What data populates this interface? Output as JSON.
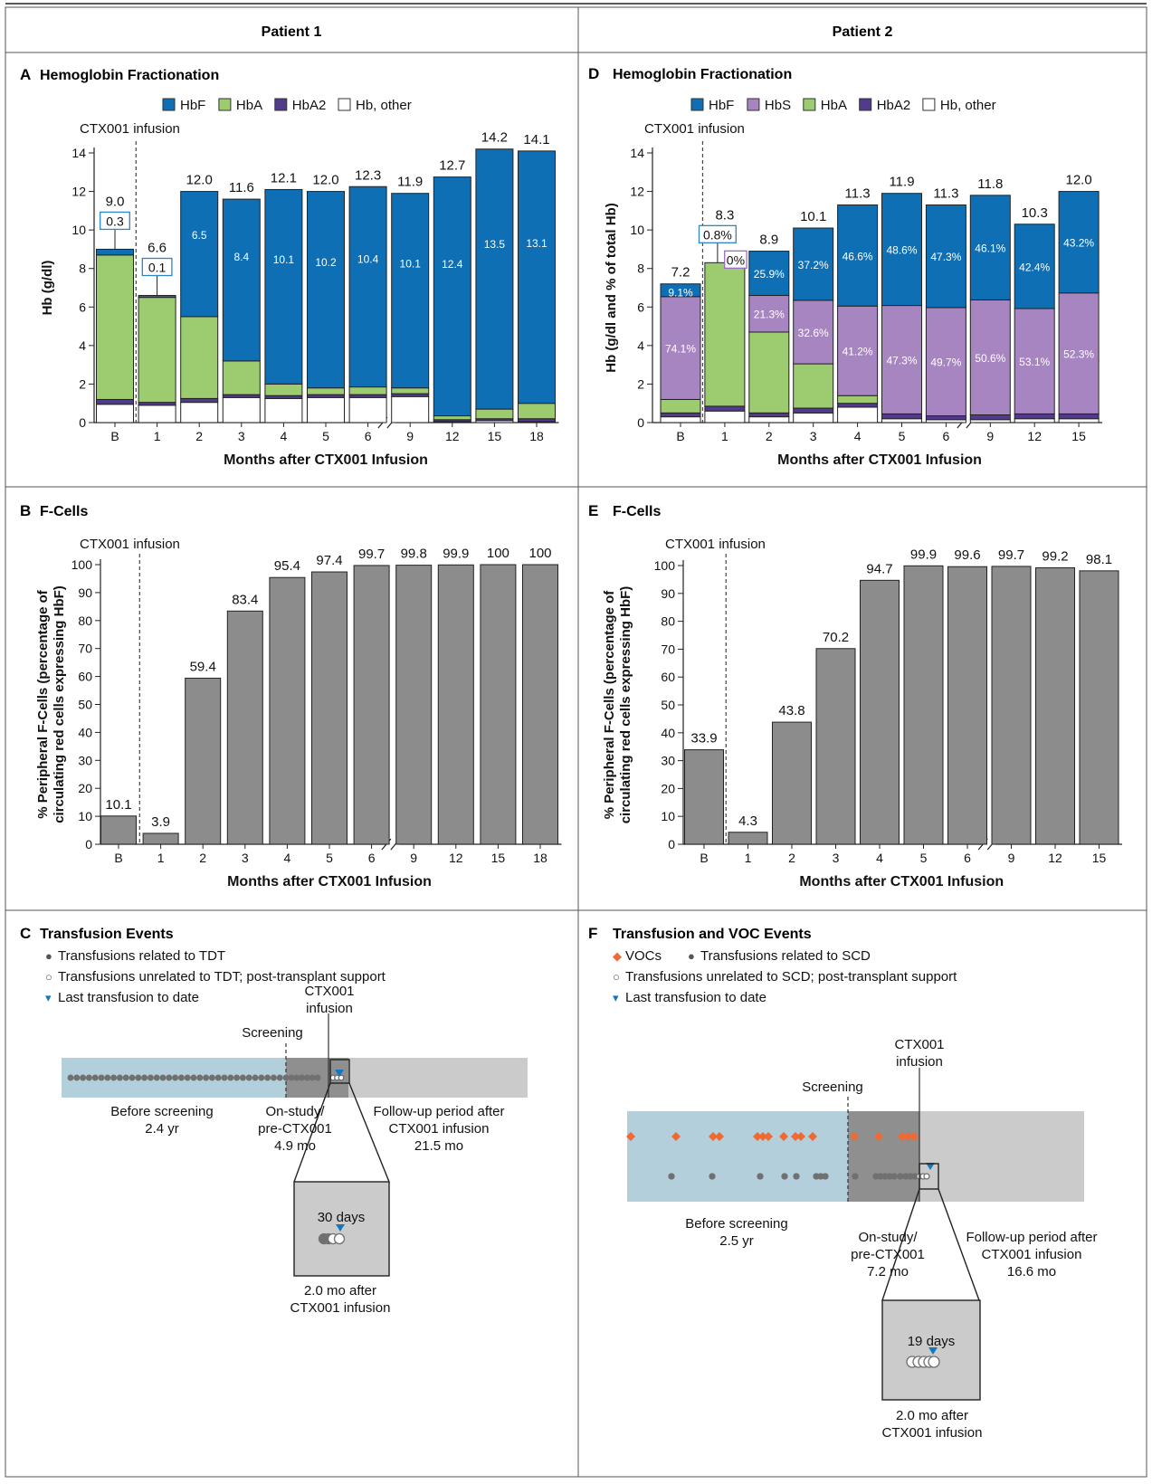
{
  "columns": [
    "Patient 1",
    "Patient 2"
  ],
  "colors": {
    "HbF": "#0e6fb5",
    "HbA": "#9ccc6f",
    "HbA2": "#523b8d",
    "HbS": "#a685c0",
    "other": "#ffffff",
    "fcell": "#8c8c8c",
    "voc": "#ef6a32",
    "dot": "#707070",
    "before_band": "#b3cfdc",
    "onstudy_band": "#8f8f8f",
    "follow_band": "#cbcbcb",
    "arrow": "#1478c0",
    "box_blue": "#2d87c6",
    "box_purple": "#9a6ec0"
  },
  "panels": {
    "A": {
      "letter": "A",
      "title": "Hemoglobin Fractionation",
      "marker_label": "CTX001 infusion",
      "ylabel": "Hb (g/dl)",
      "xlabel": "Months after CTX001 Infusion",
      "legend": [
        {
          "key": "HbF",
          "label": "HbF"
        },
        {
          "key": "HbA",
          "label": "HbA"
        },
        {
          "key": "HbA2",
          "label": "HbA2"
        },
        {
          "key": "other",
          "label": "Hb, other"
        }
      ]
    },
    "B": {
      "letter": "B",
      "title": "F-Cells",
      "marker_label": "CTX001 infusion",
      "ylabel_line1": "% Peripheral F-Cells (percentage of",
      "ylabel_line2": "circulating red cells expressing HbF)",
      "xlabel": "Months after CTX001 Infusion"
    },
    "C": {
      "letter": "C",
      "title": "Transfusion Events",
      "legend": [
        {
          "symbol": "●",
          "label": "Transfusions related to TDT"
        },
        {
          "symbol": "○",
          "label": "Transfusions unrelated to TDT; post-transplant support"
        },
        {
          "symbol": "▾",
          "label": "Last transfusion to date"
        }
      ],
      "screening_label": "Screening",
      "infusion_label": [
        "CTX001",
        "infusion"
      ],
      "before_label": [
        "Before screening",
        "2.4 yr"
      ],
      "onstudy_label": [
        "On-study/",
        "pre-CTX001",
        "4.9 mo"
      ],
      "followup_label": [
        "Follow-up period after",
        "CTX001 infusion",
        "21.5 mo"
      ],
      "zoom_days": "30 days",
      "zoom_caption": [
        "2.0 mo after",
        "CTX001 infusion"
      ]
    },
    "D": {
      "letter": "D",
      "title": "Hemoglobin Fractionation",
      "marker_label": "CTX001 infusion",
      "ylabel": "Hb (g/dl and % of total Hb)",
      "xlabel": "Months after CTX001 Infusion",
      "legend": [
        {
          "key": "HbF",
          "label": "HbF"
        },
        {
          "key": "HbS",
          "label": "HbS"
        },
        {
          "key": "HbA",
          "label": "HbA"
        },
        {
          "key": "HbA2",
          "label": "HbA2"
        },
        {
          "key": "other",
          "label": "Hb, other"
        }
      ]
    },
    "E": {
      "letter": "E",
      "title": "F-Cells",
      "marker_label": "CTX001 infusion",
      "ylabel_line1": "% Peripheral F-Cells (percentage of",
      "ylabel_line2": "circulating red cells expressing HbF)",
      "xlabel": "Months after CTX001 Infusion"
    },
    "F": {
      "letter": "F",
      "title": "Transfusion and VOC Events",
      "legend_row1": [
        {
          "symbol": "◆",
          "label": "VOCs"
        },
        {
          "symbol": "●",
          "label": "Transfusions related to SCD"
        }
      ],
      "legend": [
        {
          "symbol": "○",
          "label": "Transfusions unrelated to SCD; post-transplant support"
        },
        {
          "symbol": "▾",
          "label": "Last transfusion to date"
        }
      ],
      "screening_label": "Screening",
      "infusion_label": [
        "CTX001",
        "infusion"
      ],
      "before_label": [
        "Before screening",
        "2.5 yr"
      ],
      "onstudy_label": [
        "On-study/",
        "pre-CTX001",
        "7.2 mo"
      ],
      "followup_label": [
        "Follow-up period after",
        "CTX001 infusion",
        "16.6 mo"
      ],
      "zoom_days": "19 days",
      "zoom_caption": [
        "2.0 mo after",
        "CTX001 infusion"
      ]
    }
  },
  "chart_data": [
    {
      "id": "A",
      "type": "bar",
      "title": "Hemoglobin Fractionation",
      "xlabel": "Months after CTX001 Infusion",
      "ylabel": "Hb (g/dl)",
      "ylim": [
        0,
        14
      ],
      "yticks": [
        0,
        2,
        4,
        6,
        8,
        10,
        12,
        14
      ],
      "categories": [
        "B",
        "1",
        "2",
        "3",
        "4",
        "5",
        "6",
        "9",
        "12",
        "15",
        "18"
      ],
      "totals": [
        "9.0",
        "6.6",
        "12.0",
        "11.6",
        "12.1",
        "12.0",
        "12.3",
        "11.9",
        "12.7",
        "14.2",
        "14.1"
      ],
      "stack_order": [
        "other",
        "HbA2",
        "HbA",
        "HbF"
      ],
      "series": [
        {
          "name": "Hb, other",
          "key": "other",
          "values": [
            0.95,
            0.9,
            1.05,
            1.3,
            1.25,
            1.3,
            1.3,
            1.35,
            0.05,
            0.1,
            0.05
          ]
        },
        {
          "name": "HbA2",
          "key": "HbA2",
          "values": [
            0.25,
            0.15,
            0.2,
            0.15,
            0.15,
            0.15,
            0.15,
            0.15,
            0.1,
            0.1,
            0.15
          ]
        },
        {
          "name": "HbA",
          "key": "HbA",
          "values": [
            7.5,
            5.45,
            4.25,
            1.75,
            0.6,
            0.35,
            0.4,
            0.3,
            0.2,
            0.5,
            0.8
          ]
        },
        {
          "name": "HbF",
          "key": "HbF",
          "values": [
            0.3,
            0.1,
            6.5,
            8.4,
            10.1,
            10.2,
            10.4,
            10.1,
            12.4,
            13.5,
            13.1
          ]
        }
      ],
      "hbf_labels": [
        "0.3",
        "0.1",
        "6.5",
        "8.4",
        "10.1",
        "10.2",
        "10.4",
        "10.1",
        "12.4",
        "13.5",
        "13.1"
      ],
      "boxed_labels": [
        0,
        1
      ],
      "axis_break_after": "6"
    },
    {
      "id": "B",
      "type": "bar",
      "title": "F-Cells",
      "xlabel": "Months after CTX001 Infusion",
      "ylabel": "% Peripheral F-Cells (percentage of circulating red cells expressing HbF)",
      "ylim": [
        0,
        100
      ],
      "yticks": [
        0,
        10,
        20,
        30,
        40,
        50,
        60,
        70,
        80,
        90,
        100
      ],
      "categories": [
        "B",
        "1",
        "2",
        "3",
        "4",
        "5",
        "6",
        "9",
        "12",
        "15",
        "18"
      ],
      "values": [
        10.1,
        3.9,
        59.4,
        83.4,
        95.4,
        97.4,
        99.7,
        99.8,
        99.9,
        100,
        100
      ],
      "labels": [
        "10.1",
        "3.9",
        "59.4",
        "83.4",
        "95.4",
        "97.4",
        "99.7",
        "99.8",
        "99.9",
        "100",
        "100"
      ],
      "axis_break_after": "6"
    },
    {
      "id": "D",
      "type": "bar",
      "title": "Hemoglobin Fractionation",
      "xlabel": "Months after CTX001 Infusion",
      "ylabel": "Hb (g/dl and % of total Hb)",
      "ylim": [
        0,
        14
      ],
      "yticks": [
        0,
        2,
        4,
        6,
        8,
        10,
        12,
        14
      ],
      "categories": [
        "B",
        "1",
        "2",
        "3",
        "4",
        "5",
        "6",
        "9",
        "12",
        "15"
      ],
      "totals": [
        "7.2",
        "8.3",
        "8.9",
        "10.1",
        "11.3",
        "11.9",
        "11.3",
        "11.8",
        "10.3",
        "12.0"
      ],
      "stack_order": [
        "other",
        "HbA2",
        "HbA",
        "HbS",
        "HbF"
      ],
      "series": [
        {
          "name": "Hb, other",
          "key": "other",
          "values": [
            0.3,
            0.6,
            0.3,
            0.5,
            0.8,
            0.2,
            0.15,
            0.15,
            0.2,
            0.2
          ]
        },
        {
          "name": "HbA2",
          "key": "HbA2",
          "values": [
            0.2,
            0.25,
            0.2,
            0.25,
            0.2,
            0.25,
            0.2,
            0.25,
            0.25,
            0.25
          ]
        },
        {
          "name": "HbA",
          "key": "HbA",
          "values": [
            0.7,
            7.45,
            4.2,
            2.3,
            0.4,
            0,
            0,
            0,
            0,
            0
          ]
        },
        {
          "name": "HbS",
          "key": "HbS",
          "values": [
            5.34,
            0,
            1.9,
            3.3,
            4.65,
            5.63,
            5.62,
            5.97,
            5.47,
            6.28
          ]
        },
        {
          "name": "HbF",
          "key": "HbF",
          "values": [
            0.66,
            0,
            2.3,
            3.75,
            5.25,
            5.82,
            5.33,
            5.43,
            4.38,
            5.27
          ]
        }
      ],
      "hbf_labels": [
        "9.1%",
        "0.8%",
        "25.9%",
        "37.2%",
        "46.6%",
        "48.6%",
        "47.3%",
        "46.1%",
        "42.4%",
        "43.2%"
      ],
      "hbs_labels": [
        "74.1%",
        "0%",
        "21.3%",
        "32.6%",
        "41.2%",
        "47.3%",
        "49.7%",
        "50.6%",
        "53.1%",
        "52.3%"
      ],
      "boxed_hbf": [
        1
      ],
      "boxed_hbs": [
        1
      ],
      "axis_break_after": "6"
    },
    {
      "id": "E",
      "type": "bar",
      "title": "F-Cells",
      "xlabel": "Months after CTX001 Infusion",
      "ylabel": "% Peripheral F-Cells (percentage of circulating red cells expressing HbF)",
      "ylim": [
        0,
        100
      ],
      "yticks": [
        0,
        10,
        20,
        30,
        40,
        50,
        60,
        70,
        80,
        90,
        100
      ],
      "categories": [
        "B",
        "1",
        "2",
        "3",
        "4",
        "5",
        "6",
        "9",
        "12",
        "15"
      ],
      "values": [
        33.9,
        4.3,
        43.8,
        70.2,
        94.7,
        99.9,
        99.6,
        99.7,
        99.2,
        98.1
      ],
      "labels": [
        "33.9",
        "4.3",
        "43.8",
        "70.2",
        "94.7",
        "99.9",
        "99.6",
        "99.7",
        "99.2",
        "98.1"
      ],
      "axis_break_after": "6"
    }
  ]
}
